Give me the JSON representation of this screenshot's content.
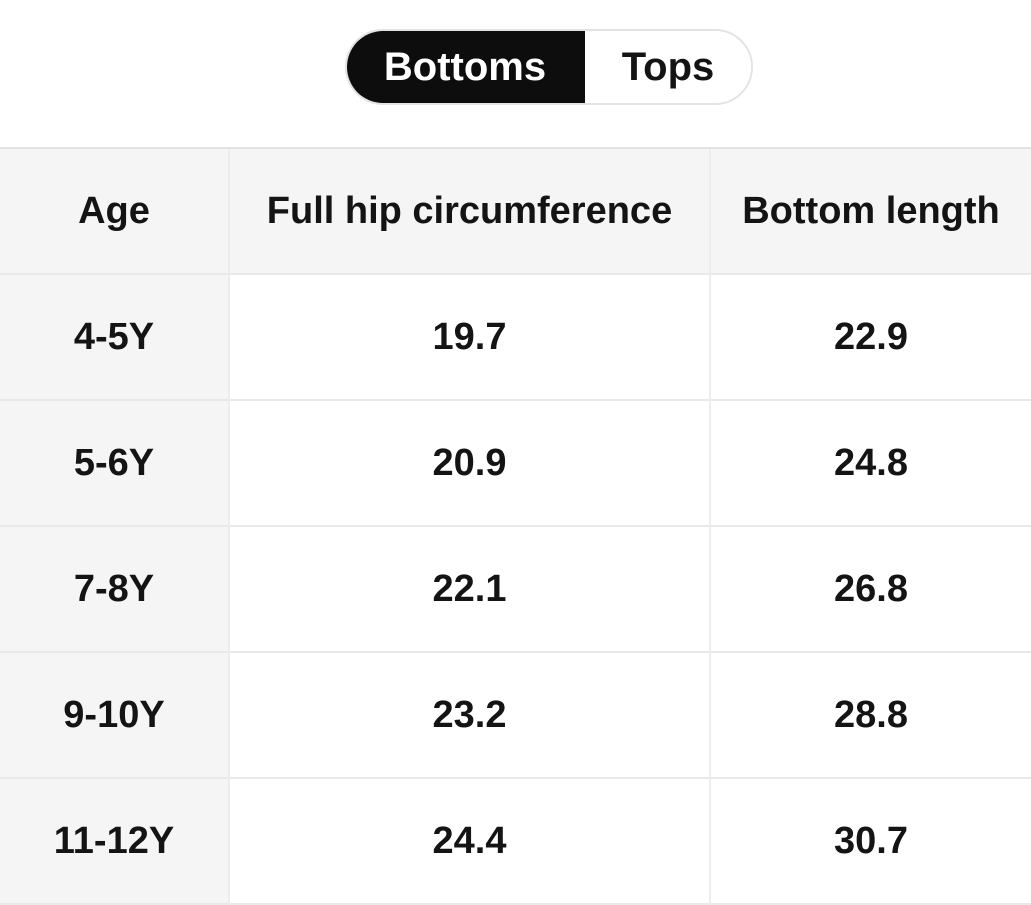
{
  "toggle": {
    "options": [
      {
        "label": "Bottoms",
        "selected": true
      },
      {
        "label": "Tops",
        "selected": false
      }
    ]
  },
  "table": {
    "columns": [
      "Age",
      "Full hip circumference",
      "Bottom length"
    ],
    "rows": [
      [
        "4-5Y",
        "19.7",
        "22.9"
      ],
      [
        "5-6Y",
        "20.9",
        "24.8"
      ],
      [
        "7-8Y",
        "22.1",
        "26.8"
      ],
      [
        "9-10Y",
        "23.2",
        "28.8"
      ],
      [
        "11-12Y",
        "24.4",
        "30.7"
      ]
    ]
  },
  "colors": {
    "selected_segment_bg": "#0d0d0d",
    "selected_segment_text": "#ffffff",
    "toggle_border": "#e3e3e3",
    "header_bg": "#f5f5f5",
    "age_column_bg": "#f5f5f5",
    "divider": "#e9e9e9",
    "text": "#141414",
    "page_bg": "#ffffff"
  }
}
